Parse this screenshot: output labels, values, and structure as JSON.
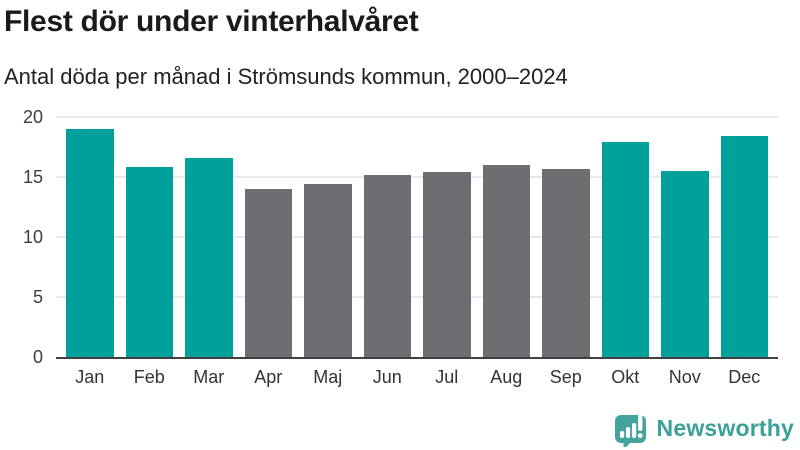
{
  "header": {
    "title": "Flest dör under vinterhalvåret",
    "subtitle": "Antal döda per månad i Strömsunds kommun, 2000–2024"
  },
  "chart_data": {
    "type": "bar",
    "title": "Flest dör under vinterhalvåret",
    "subtitle": "Antal döda per månad i Strömsunds kommun, 2000–2024",
    "categories": [
      "Jan",
      "Feb",
      "Mar",
      "Apr",
      "Maj",
      "Jun",
      "Jul",
      "Aug",
      "Sep",
      "Okt",
      "Nov",
      "Dec"
    ],
    "values": [
      19.0,
      15.8,
      16.6,
      14.0,
      14.4,
      15.2,
      15.4,
      16.0,
      15.7,
      17.9,
      15.5,
      18.4
    ],
    "bar_colors": [
      "#00a19b",
      "#00a19b",
      "#00a19b",
      "#6e6d72",
      "#6e6d72",
      "#6e6d72",
      "#6e6d72",
      "#6e6d72",
      "#6e6d72",
      "#00a19b",
      "#00a19b",
      "#00a19b"
    ],
    "highlight_color": "#00a19b",
    "base_color": "#6e6d72",
    "xlabel": "",
    "ylabel": "",
    "ylim": [
      0,
      20
    ],
    "yticks": [
      0,
      5,
      10,
      15,
      20
    ],
    "grid": "horizontal",
    "legend": "none"
  },
  "branding": {
    "logo_text": "Newsworthy",
    "logo_color": "#3d9f99",
    "logo_icon": "bar-chart-speech-bubble-icon"
  }
}
